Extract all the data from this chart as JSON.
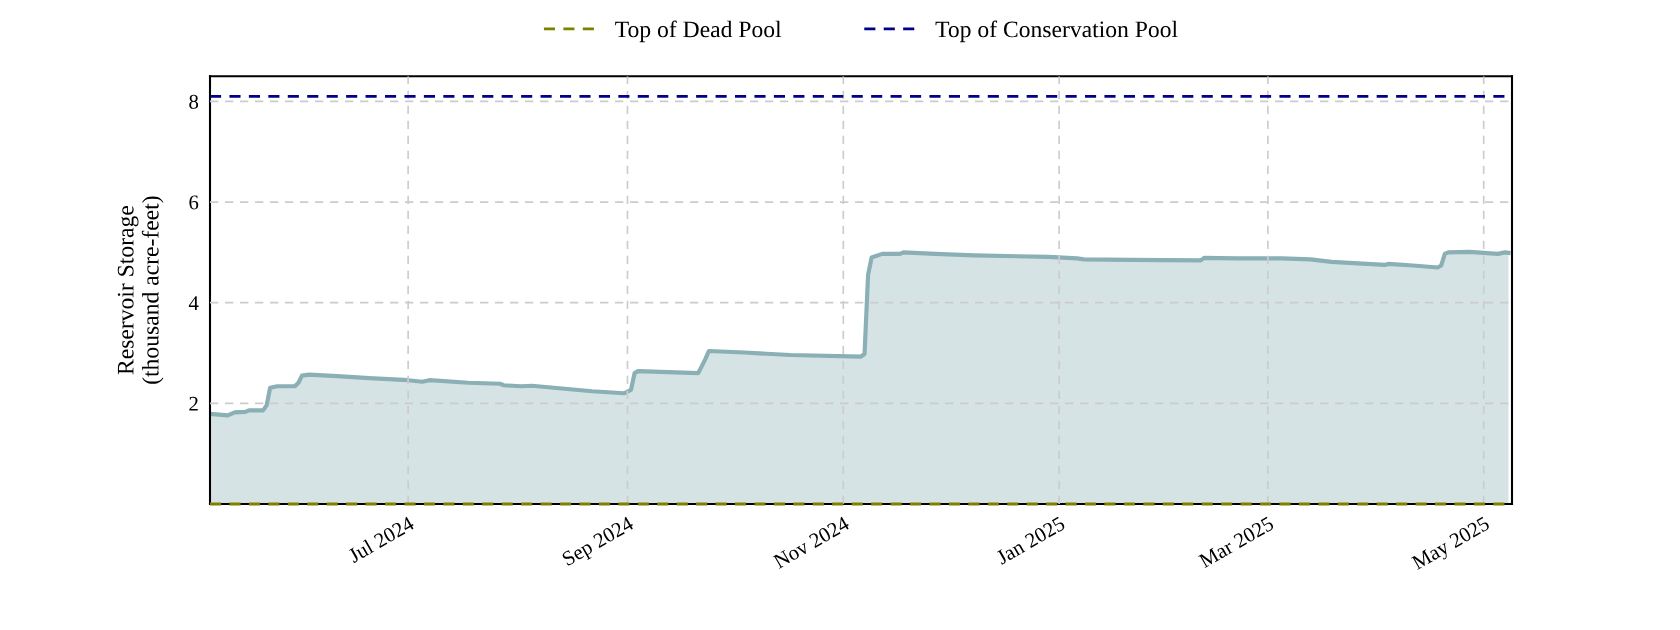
{
  "chart_data": {
    "type": "area",
    "ylabel": "Reservoir Storage\n(thousand acre-feet)",
    "x": [
      "2024-05-06",
      "2024-05-11",
      "2024-05-13",
      "2024-05-16",
      "2024-05-17",
      "2024-05-21",
      "2024-05-22",
      "2024-05-23",
      "2024-05-25",
      "2024-05-30",
      "2024-05-31",
      "2024-06-01",
      "2024-06-03",
      "2024-06-11",
      "2024-06-20",
      "2024-07-01",
      "2024-07-05",
      "2024-07-07",
      "2024-07-18",
      "2024-07-27",
      "2024-07-28",
      "2024-08-02",
      "2024-08-05",
      "2024-08-22",
      "2024-08-31",
      "2024-09-02",
      "2024-09-03",
      "2024-09-04",
      "2024-09-21",
      "2024-09-23",
      "2024-09-24",
      "2024-10-04",
      "2024-10-17",
      "2024-11-06",
      "2024-11-07",
      "2024-11-08",
      "2024-11-09",
      "2024-11-12",
      "2024-11-17",
      "2024-11-18",
      "2024-11-27",
      "2024-12-08",
      "2024-12-29",
      "2025-01-06",
      "2025-01-08",
      "2025-01-21",
      "2025-02-10",
      "2025-02-11",
      "2025-02-20",
      "2025-03-01",
      "2025-03-05",
      "2025-03-13",
      "2025-03-19",
      "2025-04-03",
      "2025-04-04",
      "2025-04-11",
      "2025-04-18",
      "2025-04-19",
      "2025-04-20",
      "2025-04-21",
      "2025-04-27",
      "2025-05-05",
      "2025-05-07",
      "2025-05-08"
    ],
    "series": [
      {
        "color": "#8aafb4",
        "values": [
          1.79,
          1.76,
          1.82,
          1.83,
          1.86,
          1.86,
          1.96,
          2.31,
          2.34,
          2.34,
          2.41,
          2.55,
          2.57,
          2.54,
          2.5,
          2.46,
          2.43,
          2.46,
          2.41,
          2.39,
          2.36,
          2.34,
          2.35,
          2.24,
          2.2,
          2.27,
          2.6,
          2.64,
          2.6,
          2.88,
          3.04,
          3.01,
          2.96,
          2.93,
          2.98,
          4.55,
          4.9,
          4.97,
          4.97,
          5.0,
          4.97,
          4.94,
          4.91,
          4.88,
          4.86,
          4.85,
          4.84,
          4.89,
          4.88,
          4.88,
          4.88,
          4.86,
          4.81,
          4.75,
          4.77,
          4.74,
          4.7,
          4.74,
          4.97,
          5.0,
          5.01,
          4.97,
          5.0,
          4.99
        ]
      }
    ],
    "ref_lines": [
      {
        "axis": "y",
        "value": 0,
        "label": "Top of Dead Pool",
        "color": "#808000",
        "line_style": "dashed"
      },
      {
        "axis": "y",
        "value": 8.1,
        "label": "Top of Conservation Pool",
        "color": "#00008b",
        "line_style": "dashed"
      }
    ],
    "xlim": [
      "2024-05-06",
      "2025-05-09"
    ],
    "xticks": [
      {
        "value": "2024-07-01",
        "label": "Jul 2024"
      },
      {
        "value": "2024-09-01",
        "label": "Sep 2024"
      },
      {
        "value": "2024-11-01",
        "label": "Nov 2024"
      },
      {
        "value": "2025-01-01",
        "label": "Jan 2025"
      },
      {
        "value": "2025-03-01",
        "label": "Mar 2025"
      },
      {
        "value": "2025-05-01",
        "label": "May 2025"
      }
    ],
    "ylim": [
      0,
      8.5
    ],
    "yticks": [
      2,
      4,
      6,
      8
    ],
    "grid": true,
    "legend": "top"
  }
}
